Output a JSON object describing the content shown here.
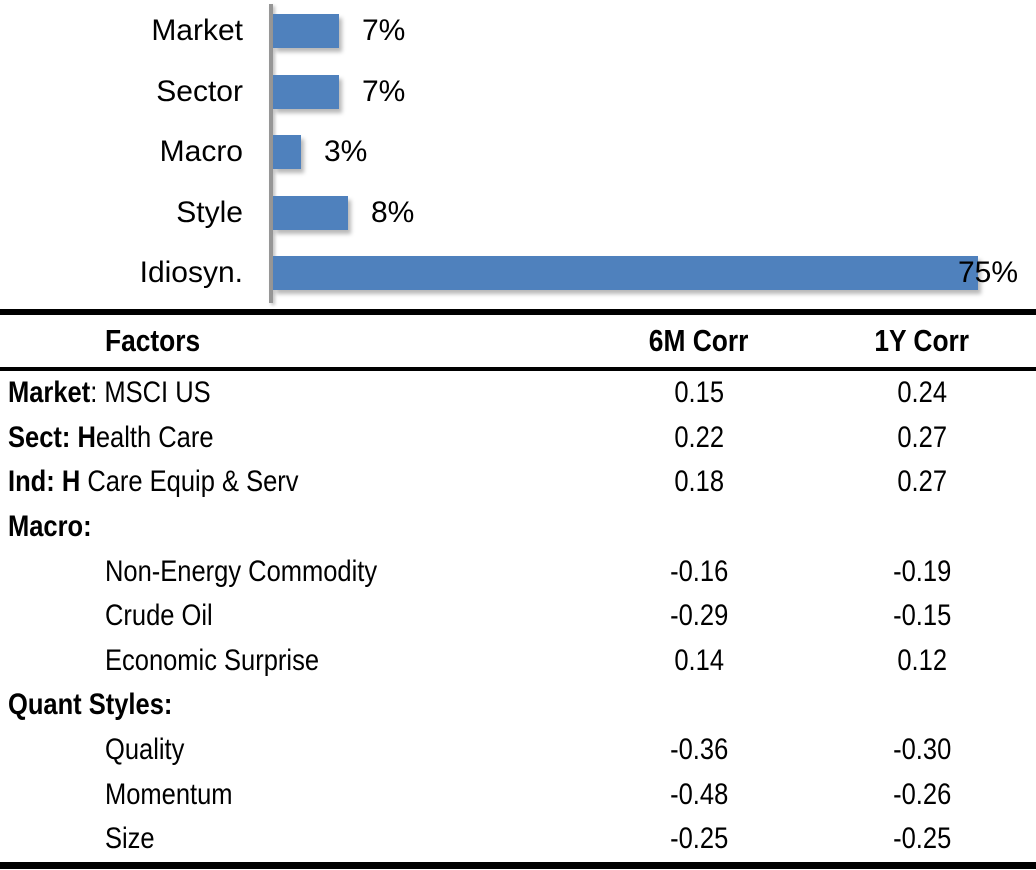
{
  "chart": {
    "bars": [
      {
        "label": "Market",
        "value": 7,
        "value_label": "7%"
      },
      {
        "label": "Sector",
        "value": 7,
        "value_label": "7%"
      },
      {
        "label": "Macro",
        "value": 3,
        "value_label": "3%"
      },
      {
        "label": "Style",
        "value": 8,
        "value_label": "8%"
      },
      {
        "label": "Idiosyn.",
        "value": 75,
        "value_label": "75%"
      }
    ],
    "bar_color": "#4F81BD",
    "axis_color": "#969696"
  },
  "table": {
    "headers": {
      "factor": "Factors",
      "col6m": "6M Corr",
      "col1y": "1Y Corr"
    },
    "rows": [
      {
        "bold": "Market",
        "rest": ": MSCI US",
        "c6m": "0.15",
        "c1y": "0.24"
      },
      {
        "bold": "Sect: H",
        "rest": "ealth Care",
        "c6m": "0.22",
        "c1y": "0.27"
      },
      {
        "bold": "Ind: H",
        "rest": " Care Equip & Serv",
        "c6m": "0.18",
        "c1y": "0.27"
      },
      {
        "bold": "Macro:",
        "rest": "",
        "c6m": "",
        "c1y": ""
      },
      {
        "bold": "",
        "rest": "Non-Energy Commodity",
        "c6m": "-0.16",
        "c1y": "-0.19"
      },
      {
        "bold": "",
        "rest": "Crude Oil",
        "c6m": "-0.29",
        "c1y": "-0.15"
      },
      {
        "bold": "",
        "rest": "Economic Surprise",
        "c6m": "0.14",
        "c1y": "0.12"
      },
      {
        "bold": "Quant Styles:",
        "rest": "",
        "c6m": "",
        "c1y": ""
      },
      {
        "bold": "",
        "rest": "Quality",
        "c6m": "-0.36",
        "c1y": "-0.30"
      },
      {
        "bold": "",
        "rest": "Momentum",
        "c6m": "-0.48",
        "c1y": "-0.26"
      },
      {
        "bold": "",
        "rest": "Size",
        "c6m": "-0.25",
        "c1y": "-0.25"
      }
    ]
  },
  "chart_data": [
    {
      "type": "bar",
      "orientation": "horizontal",
      "categories": [
        "Market",
        "Sector",
        "Macro",
        "Style",
        "Idiosyn."
      ],
      "values": [
        7,
        7,
        3,
        8,
        75
      ],
      "data_labels": [
        "7%",
        "7%",
        "3%",
        "8%",
        "75%"
      ],
      "unit": "percent",
      "title": "",
      "xlabel": "",
      "ylabel": "",
      "xlim": [
        0,
        80
      ],
      "grid": false,
      "legend": false,
      "bar_color": "#4F81BD"
    },
    {
      "type": "table",
      "columns": [
        "Factors",
        "6M Corr",
        "1Y Corr"
      ],
      "rows": [
        [
          "Market: MSCI US",
          0.15,
          0.24
        ],
        [
          "Sect: Health Care",
          0.22,
          0.27
        ],
        [
          "Ind: H Care Equip & Serv",
          0.18,
          0.27
        ],
        [
          "Macro:",
          null,
          null
        ],
        [
          "Non-Energy Commodity",
          -0.16,
          -0.19
        ],
        [
          "Crude Oil",
          -0.29,
          -0.15
        ],
        [
          "Economic Surprise",
          0.14,
          0.12
        ],
        [
          "Quant Styles:",
          null,
          null
        ],
        [
          "Quality",
          -0.36,
          -0.3
        ],
        [
          "Momentum",
          -0.48,
          -0.26
        ],
        [
          "Size",
          -0.25,
          -0.25
        ]
      ]
    }
  ]
}
